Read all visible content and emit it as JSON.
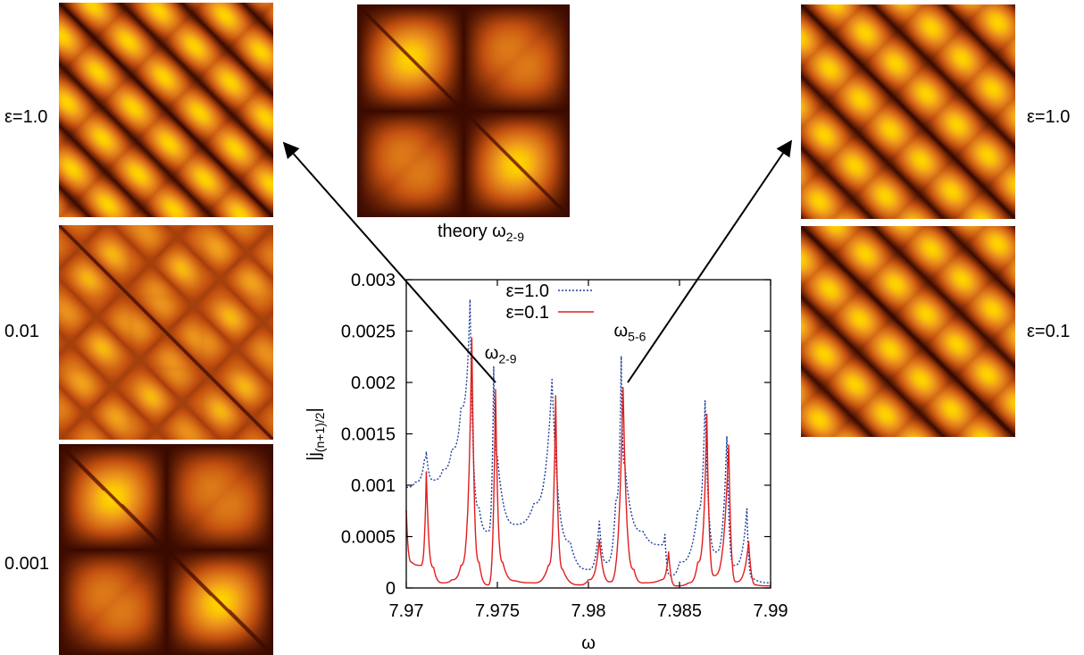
{
  "panels": {
    "left_labels": [
      "ε=1.0",
      "0.01",
      "0.001"
    ],
    "right_labels": [
      "ε=1.0",
      "ε=0.1"
    ],
    "theory_label": "theory",
    "theory_sub": "2-9"
  },
  "colors": {
    "dark": "#3a0a00",
    "mid": "#c24f10",
    "light": "#ffd400",
    "blue": "#1f3f9a",
    "red": "#e01e1e"
  },
  "chart_data": {
    "type": "line",
    "xlabel": "ω",
    "ylabel": "|j(n+1)/2|",
    "xlim": [
      7.97,
      7.99
    ],
    "ylim": [
      0,
      0.003
    ],
    "xticks": [
      "7.97",
      "7.975",
      "7.98",
      "7.985",
      "7.99"
    ],
    "yticks": [
      "0",
      "0.0005",
      "0.001",
      "0.0015",
      "0.002",
      "0.0025",
      "0.003"
    ],
    "legend_position": "top-center",
    "series": [
      {
        "name": "ε=1.0",
        "style": "dotted",
        "color": "#1f3f9a",
        "peaks": [
          [
            7.9711,
            0.00132
          ],
          [
            7.9735,
            0.0028
          ],
          [
            7.9748,
            0.00215
          ],
          [
            7.978,
            0.00203
          ],
          [
            7.9806,
            0.00065
          ],
          [
            7.9818,
            0.00225
          ],
          [
            7.9842,
            0.00052
          ],
          [
            7.9864,
            0.00182
          ],
          [
            7.9876,
            0.00147
          ],
          [
            7.9887,
            0.00077
          ]
        ],
        "x": [
          7.97,
          7.9705,
          7.971,
          7.9711,
          7.9715,
          7.972,
          7.9725,
          7.973,
          7.9735,
          7.974,
          7.9745,
          7.9748,
          7.975,
          7.976,
          7.977,
          7.978,
          7.979,
          7.98,
          7.9806,
          7.981,
          7.9815,
          7.9818,
          7.982,
          7.983,
          7.984,
          7.9842,
          7.9845,
          7.985,
          7.986,
          7.9864,
          7.987,
          7.9876,
          7.988,
          7.9887,
          7.989,
          7.99
        ],
        "y": [
          0.00098,
          0.00103,
          0.00125,
          0.00132,
          0.00105,
          0.00115,
          0.00135,
          0.00175,
          0.0028,
          0.00078,
          0.00055,
          0.00215,
          0.00128,
          0.00062,
          0.00082,
          0.00203,
          0.00045,
          0.00018,
          0.00065,
          0.00025,
          0.00085,
          0.00225,
          0.0012,
          0.00055,
          0.00042,
          0.00052,
          0.00012,
          0.00025,
          0.00075,
          0.00182,
          0.00035,
          0.00147,
          0.00022,
          0.00077,
          0.0001,
          5e-05
        ]
      },
      {
        "name": "ε=0.1",
        "style": "solid",
        "color": "#e01e1e",
        "peaks": [
          [
            7.97,
            0.00075
          ],
          [
            7.9711,
            0.00113
          ],
          [
            7.9736,
            0.00243
          ],
          [
            7.9749,
            0.00193
          ],
          [
            7.9782,
            0.00187
          ],
          [
            7.9806,
            0.00047
          ],
          [
            7.9819,
            0.00195
          ],
          [
            7.9844,
            0.00035
          ],
          [
            7.9865,
            0.00169
          ],
          [
            7.9877,
            0.00139
          ],
          [
            7.9888,
            0.00045
          ]
        ],
        "x": [
          7.97,
          7.9703,
          7.9708,
          7.9711,
          7.9715,
          7.972,
          7.9725,
          7.973,
          7.9736,
          7.974,
          7.9745,
          7.9749,
          7.9753,
          7.976,
          7.977,
          7.9778,
          7.9782,
          7.9786,
          7.9795,
          7.98,
          7.9806,
          7.9812,
          7.9819,
          7.9825,
          7.983,
          7.984,
          7.9844,
          7.9848,
          7.9855,
          7.986,
          7.9865,
          7.9869,
          7.9877,
          7.9881,
          7.9888,
          7.9892,
          7.99
        ],
        "y": [
          0.00075,
          0.00025,
          0.00022,
          0.00113,
          0.0002,
          5e-05,
          8e-05,
          0.00022,
          0.00243,
          0.00025,
          3e-05,
          0.00193,
          0.00025,
          7e-05,
          5e-05,
          0.00022,
          0.00187,
          0.00018,
          3e-05,
          8e-05,
          0.00047,
          6e-05,
          0.00195,
          0.00018,
          5e-05,
          8e-05,
          0.00035,
          2e-05,
          5e-05,
          0.00025,
          0.00169,
          0.00012,
          0.00139,
          6e-05,
          0.00045,
          3e-05,
          2e-05
        ]
      }
    ],
    "annotations": [
      {
        "text": "ω",
        "sub": "2-9",
        "x": 7.9743,
        "y": 0.00223
      },
      {
        "text": "ω",
        "sub": "5-6",
        "x": 7.9814,
        "y": 0.00245
      }
    ]
  }
}
